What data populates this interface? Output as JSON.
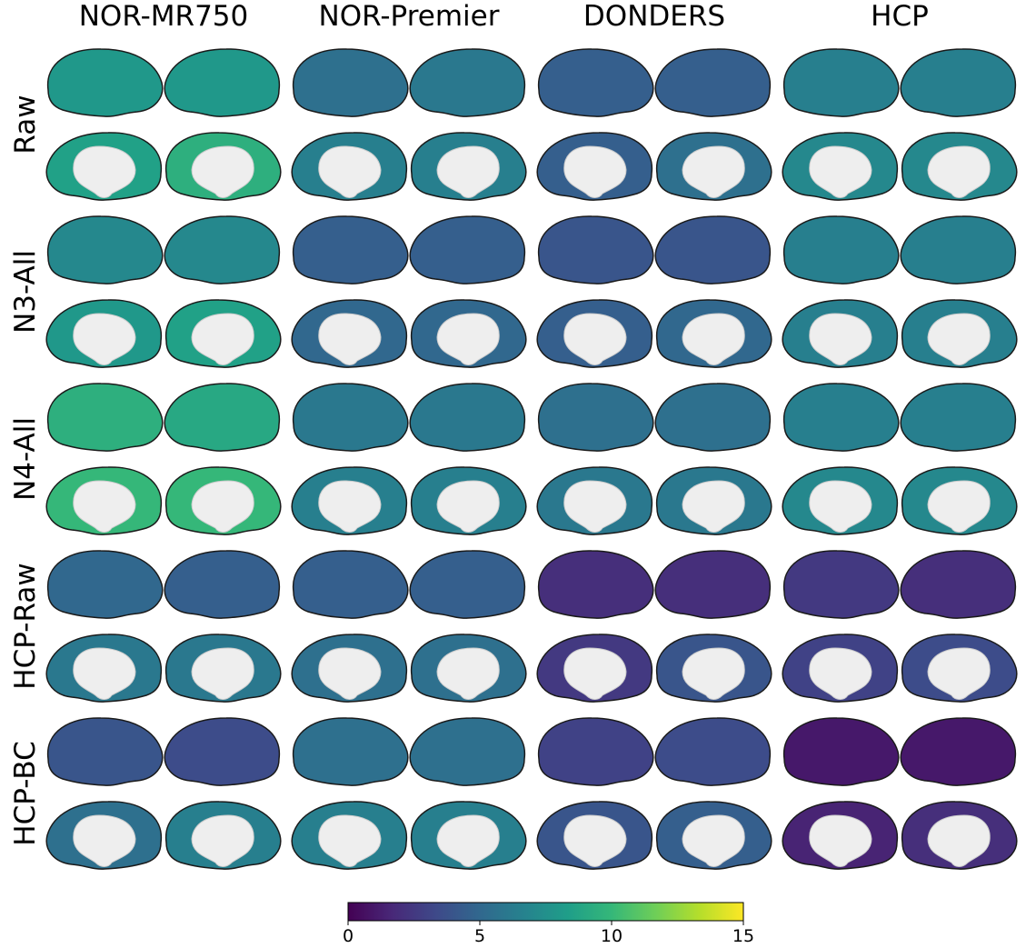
{
  "chart_data": {
    "type": "brain-map",
    "columns": [
      "NOR-MR750",
      "NOR-Premier",
      "DONDERS",
      "HCP"
    ],
    "rows": [
      "Raw",
      "N3-All",
      "N4-All",
      "HCP-Raw",
      "HCP-BC"
    ],
    "colormap": [
      "#440154",
      "#482878",
      "#3e4989",
      "#31688e",
      "#26828e",
      "#1f9e89",
      "#35b779",
      "#6ece58",
      "#b5de2b",
      "#fde725"
    ],
    "values": [
      [
        8,
        8,
        5.5,
        6,
        4.5,
        4.5,
        6.5,
        6.5
      ],
      [
        8.5,
        9.5,
        6.5,
        6.5,
        4.5,
        5.5,
        7,
        7
      ],
      [
        7,
        7,
        4.5,
        4.5,
        4,
        4,
        6.5,
        6.5
      ],
      [
        8,
        8.5,
        5,
        5,
        4.5,
        5,
        6.5,
        6.5
      ],
      [
        9.5,
        9,
        6,
        6,
        5.5,
        5.5,
        6.5,
        6.5
      ],
      [
        10,
        10,
        6.5,
        6.5,
        6,
        6,
        7,
        7
      ],
      [
        5,
        4.5,
        4.5,
        4.5,
        2,
        2,
        2.5,
        2
      ],
      [
        6,
        6,
        5.5,
        5.5,
        2.5,
        4,
        3,
        3.5
      ],
      [
        4,
        3.5,
        5.5,
        5.5,
        3,
        3.5,
        1,
        1
      ],
      [
        5.5,
        6.5,
        6.5,
        6.5,
        4,
        4.5,
        1.5,
        2
      ]
    ],
    "clim": [
      0,
      15
    ],
    "cticks": [
      0,
      5,
      10,
      15
    ]
  }
}
